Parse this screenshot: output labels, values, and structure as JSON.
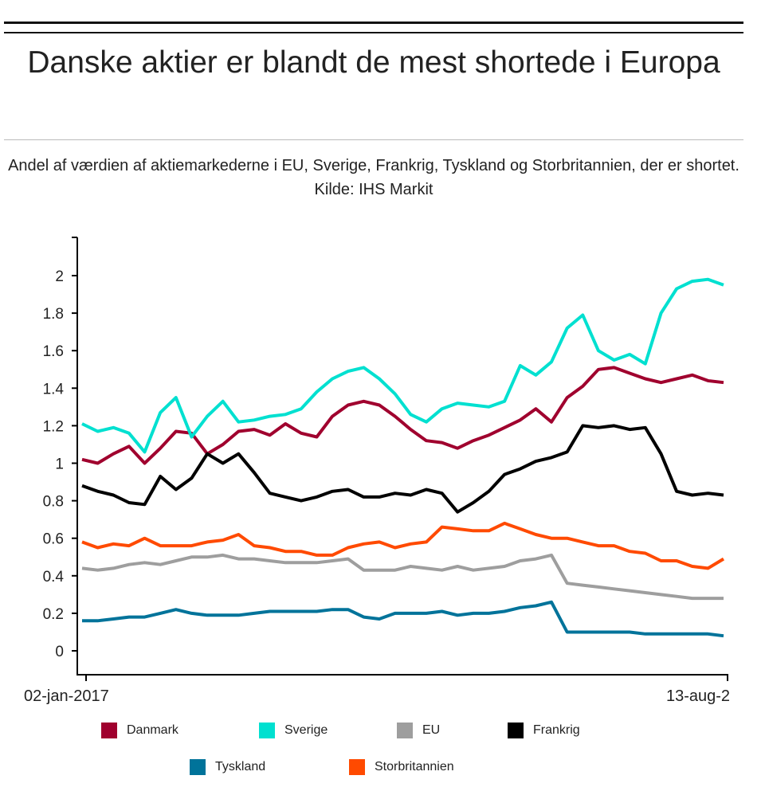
{
  "chart_data": {
    "type": "line",
    "title": "Danske aktier er blandt de mest shortede i Europa",
    "subtitle": "Andel af værdien af aktiemarkederne i EU, Sverige, Frankrig, Tyskland og Storbritannien, der er shortet. Kilde: IHS Markit",
    "xlabel": "",
    "ylabel": "",
    "x_tick_labels": [
      "02-jan-2017",
      "13-aug-2"
    ],
    "ylim": [
      0,
      2.2
    ],
    "y_ticks": [
      0,
      0.2,
      0.4,
      0.6,
      0.8,
      1,
      1.2,
      1.4,
      1.6,
      1.8,
      2
    ],
    "y_tick_labels": [
      "0",
      "0.2",
      "0.4",
      "0.6",
      "0.8",
      "1",
      "1.2",
      "1.4",
      "1.6",
      "1.8",
      "2"
    ],
    "grid": false,
    "legend_position": "bottom",
    "series": [
      {
        "name": "Danmark",
        "color": "#a0002e",
        "values": [
          1.02,
          1.0,
          1.05,
          1.09,
          1.0,
          1.08,
          1.17,
          1.16,
          1.05,
          1.1,
          1.17,
          1.18,
          1.15,
          1.21,
          1.16,
          1.14,
          1.25,
          1.31,
          1.33,
          1.31,
          1.25,
          1.18,
          1.12,
          1.11,
          1.08,
          1.12,
          1.15,
          1.19,
          1.23,
          1.29,
          1.22,
          1.35,
          1.41,
          1.5,
          1.51,
          1.48,
          1.45,
          1.43,
          1.45,
          1.47,
          1.44,
          1.43
        ]
      },
      {
        "name": "Sverige",
        "color": "#00e0d0",
        "values": [
          1.21,
          1.17,
          1.19,
          1.16,
          1.06,
          1.27,
          1.35,
          1.14,
          1.25,
          1.33,
          1.22,
          1.23,
          1.25,
          1.26,
          1.29,
          1.38,
          1.45,
          1.49,
          1.51,
          1.45,
          1.37,
          1.26,
          1.22,
          1.29,
          1.32,
          1.31,
          1.3,
          1.33,
          1.52,
          1.47,
          1.54,
          1.72,
          1.79,
          1.6,
          1.55,
          1.58,
          1.53,
          1.8,
          1.93,
          1.97,
          1.98,
          1.95
        ]
      },
      {
        "name": "EU",
        "color": "#9e9e9e",
        "values": [
          0.44,
          0.43,
          0.44,
          0.46,
          0.47,
          0.46,
          0.48,
          0.5,
          0.5,
          0.51,
          0.49,
          0.49,
          0.48,
          0.47,
          0.47,
          0.47,
          0.48,
          0.49,
          0.43,
          0.43,
          0.43,
          0.45,
          0.44,
          0.43,
          0.45,
          0.43,
          0.44,
          0.45,
          0.48,
          0.49,
          0.51,
          0.36,
          0.35,
          0.34,
          0.33,
          0.32,
          0.31,
          0.3,
          0.29,
          0.28,
          0.28,
          0.28
        ]
      },
      {
        "name": "Frankrig",
        "color": "#000000",
        "values": [
          0.88,
          0.85,
          0.83,
          0.79,
          0.78,
          0.93,
          0.86,
          0.92,
          1.05,
          1.0,
          1.05,
          0.95,
          0.84,
          0.82,
          0.8,
          0.82,
          0.85,
          0.86,
          0.82,
          0.82,
          0.84,
          0.83,
          0.86,
          0.84,
          0.74,
          0.79,
          0.85,
          0.94,
          0.97,
          1.01,
          1.03,
          1.06,
          1.2,
          1.19,
          1.2,
          1.18,
          1.19,
          1.05,
          0.85,
          0.83,
          0.84,
          0.83
        ]
      },
      {
        "name": "Tyskland",
        "color": "#00739a",
        "values": [
          0.16,
          0.16,
          0.17,
          0.18,
          0.18,
          0.2,
          0.22,
          0.2,
          0.19,
          0.19,
          0.19,
          0.2,
          0.21,
          0.21,
          0.21,
          0.21,
          0.22,
          0.22,
          0.18,
          0.17,
          0.2,
          0.2,
          0.2,
          0.21,
          0.19,
          0.2,
          0.2,
          0.21,
          0.23,
          0.24,
          0.26,
          0.1,
          0.1,
          0.1,
          0.1,
          0.1,
          0.09,
          0.09,
          0.09,
          0.09,
          0.09,
          0.08
        ]
      },
      {
        "name": "Storbritannien",
        "color": "#ff4a00",
        "values": [
          0.58,
          0.55,
          0.57,
          0.56,
          0.6,
          0.56,
          0.56,
          0.56,
          0.58,
          0.59,
          0.62,
          0.56,
          0.55,
          0.53,
          0.53,
          0.51,
          0.51,
          0.55,
          0.57,
          0.58,
          0.55,
          0.57,
          0.58,
          0.66,
          0.65,
          0.64,
          0.64,
          0.68,
          0.65,
          0.62,
          0.6,
          0.6,
          0.58,
          0.56,
          0.56,
          0.53,
          0.52,
          0.48,
          0.48,
          0.45,
          0.44,
          0.49
        ]
      }
    ]
  }
}
